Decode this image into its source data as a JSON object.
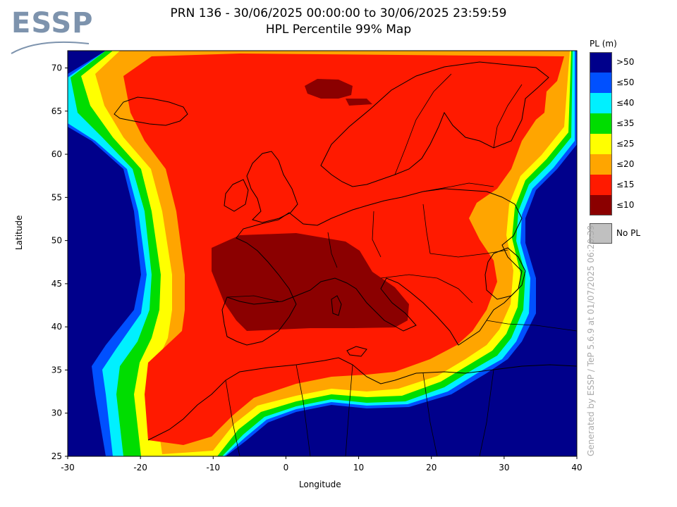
{
  "logo": {
    "text": "ESSP"
  },
  "title": {
    "line1": "PRN 136 - 30/06/2025 00:00:00 to 30/06/2025 23:59:59",
    "line2": "HPL Percentile 99% Map"
  },
  "axes": {
    "xlabel": "Longitude",
    "ylabel": "Latitude",
    "x_ticks": [
      -30,
      -20,
      -10,
      0,
      10,
      20,
      30,
      40
    ],
    "y_ticks": [
      25,
      30,
      35,
      40,
      45,
      50,
      55,
      60,
      65,
      70
    ],
    "x_range": [
      -30,
      40
    ],
    "y_range": [
      25,
      72
    ]
  },
  "legend": {
    "title": "PL (m)",
    "items": [
      {
        "label": ">50",
        "color": "#00008b"
      },
      {
        "label": "≤50",
        "color": "#0050ff"
      },
      {
        "label": "≤40",
        "color": "#00f0ff"
      },
      {
        "label": "≤35",
        "color": "#00dd00"
      },
      {
        "label": "≤25",
        "color": "#ffff00"
      },
      {
        "label": "≤20",
        "color": "#ffa500"
      },
      {
        "label": "≤15",
        "color": "#ff1a00"
      },
      {
        "label": "≤10",
        "color": "#8b0000"
      }
    ],
    "no_pl": {
      "label": "No PL",
      "color": "#c0c0c0"
    }
  },
  "watermark": "Generated by ESSP / TeP 5.6.9 at 01/07/2025 06:20:39"
}
